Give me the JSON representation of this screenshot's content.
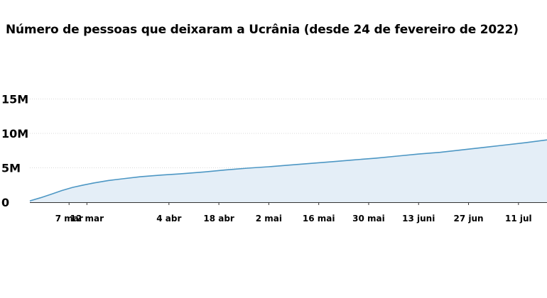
{
  "chart_data": {
    "type": "area",
    "title": "Número de pessoas que deixaram a Ucrânia (desde 24 de fevereiro de 2022)",
    "xlabel": "",
    "ylabel": "",
    "ylim": [
      0,
      15000000
    ],
    "y_ticks": [
      {
        "value": 0,
        "label": "0"
      },
      {
        "value": 5000000,
        "label": "5M"
      },
      {
        "value": 10000000,
        "label": "10M"
      },
      {
        "value": 15000000,
        "label": "15M"
      }
    ],
    "x_range": [
      "2022-02-24",
      "2022-07-19"
    ],
    "x_ticks": [
      {
        "date": "2022-03-07",
        "label": "7 mar"
      },
      {
        "date": "2022-03-12",
        "label": "12 mar"
      },
      {
        "date": "2022-04-04",
        "label": "4 abr"
      },
      {
        "date": "2022-04-18",
        "label": "18 abr"
      },
      {
        "date": "2022-05-02",
        "label": "2 mai"
      },
      {
        "date": "2022-05-16",
        "label": "16 mai"
      },
      {
        "date": "2022-05-30",
        "label": "30 mai"
      },
      {
        "date": "2022-06-13",
        "label": "13 juni"
      },
      {
        "date": "2022-06-27",
        "label": "27 jun"
      },
      {
        "date": "2022-07-11",
        "label": "11 jul"
      }
    ],
    "grid": true,
    "colors": {
      "line": "#4d97c4",
      "fill": "#e4eef7",
      "grid": "#d9d9d9",
      "axis": "#333333"
    },
    "series": [
      {
        "points": [
          {
            "x": "2022-02-24",
            "y": 200000
          },
          {
            "x": "2022-02-27",
            "y": 650000
          },
          {
            "x": "2022-03-02",
            "y": 1150000
          },
          {
            "x": "2022-03-05",
            "y": 1700000
          },
          {
            "x": "2022-03-08",
            "y": 2150000
          },
          {
            "x": "2022-03-11",
            "y": 2500000
          },
          {
            "x": "2022-03-14",
            "y": 2800000
          },
          {
            "x": "2022-03-18",
            "y": 3150000
          },
          {
            "x": "2022-03-22",
            "y": 3400000
          },
          {
            "x": "2022-03-27",
            "y": 3700000
          },
          {
            "x": "2022-04-02",
            "y": 3950000
          },
          {
            "x": "2022-04-08",
            "y": 4150000
          },
          {
            "x": "2022-04-14",
            "y": 4400000
          },
          {
            "x": "2022-04-20",
            "y": 4700000
          },
          {
            "x": "2022-04-26",
            "y": 4950000
          },
          {
            "x": "2022-05-02",
            "y": 5150000
          },
          {
            "x": "2022-05-08",
            "y": 5400000
          },
          {
            "x": "2022-05-14",
            "y": 5650000
          },
          {
            "x": "2022-05-20",
            "y": 5900000
          },
          {
            "x": "2022-05-26",
            "y": 6150000
          },
          {
            "x": "2022-06-01",
            "y": 6400000
          },
          {
            "x": "2022-06-07",
            "y": 6700000
          },
          {
            "x": "2022-06-13",
            "y": 7000000
          },
          {
            "x": "2022-06-19",
            "y": 7250000
          },
          {
            "x": "2022-06-25",
            "y": 7600000
          },
          {
            "x": "2022-07-01",
            "y": 7950000
          },
          {
            "x": "2022-07-07",
            "y": 8300000
          },
          {
            "x": "2022-07-13",
            "y": 8650000
          },
          {
            "x": "2022-07-19",
            "y": 9050000
          }
        ]
      }
    ]
  }
}
